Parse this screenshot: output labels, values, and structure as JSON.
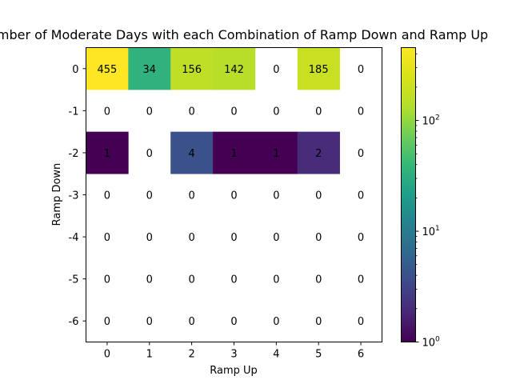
{
  "chart_data": {
    "type": "heatmap",
    "title": "Number of Moderate Days with each Combination of Ramp Down and Ramp Up",
    "xlabel": "Ramp Up",
    "ylabel": "Ramp Down",
    "x_categories": [
      "0",
      "1",
      "2",
      "3",
      "4",
      "5",
      "6"
    ],
    "y_categories": [
      "0",
      "-1",
      "-2",
      "-3",
      "-4",
      "-5",
      "-6"
    ],
    "values": [
      [
        455,
        34,
        156,
        142,
        0,
        185,
        0
      ],
      [
        0,
        0,
        0,
        0,
        0,
        0,
        0
      ],
      [
        1,
        0,
        4,
        1,
        1,
        2,
        0
      ],
      [
        0,
        0,
        0,
        0,
        0,
        0,
        0
      ],
      [
        0,
        0,
        0,
        0,
        0,
        0,
        0
      ],
      [
        0,
        0,
        0,
        0,
        0,
        0,
        0
      ],
      [
        0,
        0,
        0,
        0,
        0,
        0,
        0
      ]
    ],
    "colorbar": {
      "scale": "log",
      "colormap": "viridis",
      "range": [
        1,
        455
      ],
      "tick_values": [
        1,
        10,
        100
      ],
      "tick_labels": [
        "10",
        "10",
        "10"
      ],
      "tick_exponents": [
        "0",
        "1",
        "2"
      ]
    },
    "zero_cells_colored": false
  }
}
